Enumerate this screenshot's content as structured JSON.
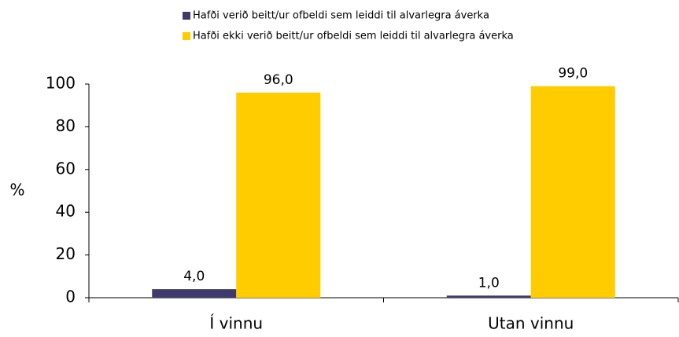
{
  "chart_data": {
    "type": "bar",
    "y_label": "%",
    "categories": [
      "Í vinnu",
      "Utan vinnu"
    ],
    "series": [
      {
        "name": "Hafði verið beitt/ur ofbeldi sem leiddi til alvarlegra áverka",
        "color": "#3f3a6b",
        "values": [
          4.0,
          1.0
        ],
        "value_labels": [
          "4,0",
          "1,0"
        ]
      },
      {
        "name": "Hafði ekki verið beitt/ur ofbeldi sem leiddi til alvarlegra áverka",
        "color": "#ffcc00",
        "values": [
          96.0,
          99.0
        ],
        "value_labels": [
          "96,0",
          "99,0"
        ]
      }
    ],
    "ylim": [
      0,
      100
    ],
    "yticks": [
      0,
      20,
      40,
      60,
      80,
      100
    ]
  }
}
